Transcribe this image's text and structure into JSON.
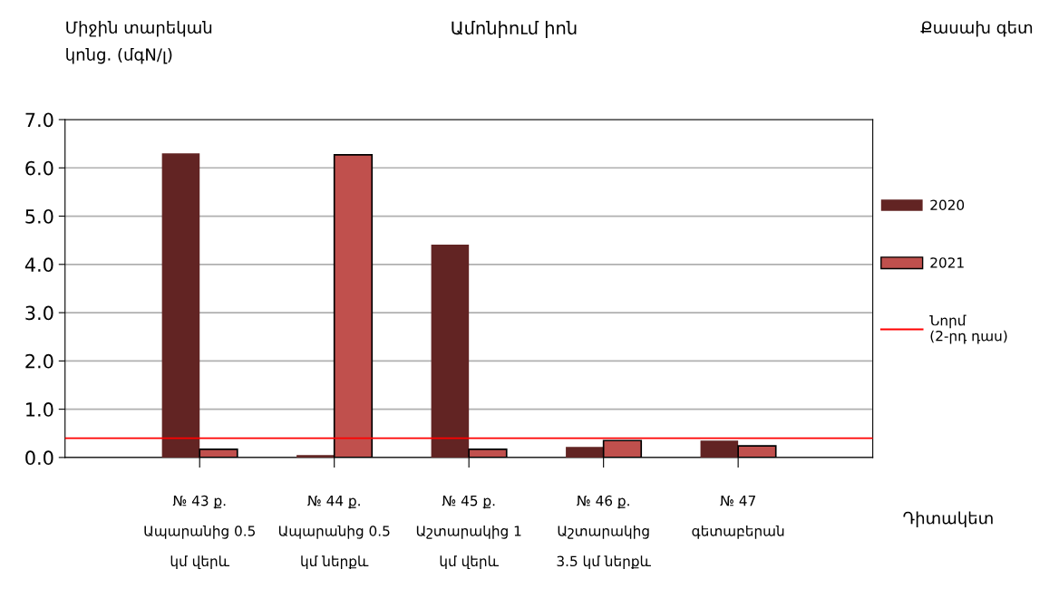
{
  "chart_data": {
    "type": "bar",
    "title": "Ամոնիում իոն",
    "ylabel": "Միջին տարեկան\nկոնց. (մգN/լ)",
    "xlabel": "Դիտակետ",
    "annotations": [
      "Քասախ գետ"
    ],
    "categories": [
      "№ 43 ք.\nԱպարանից 0.5\nկմ վերև",
      "№ 44 ք.\nԱպարանից 0.5\nկմ ներքև",
      "№ 45 ք.\nԱշտարակից 1\nկմ վերև",
      "№ 46 ք.\nԱշտարակից\n3.5 կմ ներքև",
      "№ 47\nգետաբերան"
    ],
    "series": [
      {
        "name": "2020",
        "color": "#622423",
        "values": [
          6.3,
          0.05,
          4.41,
          0.22,
          0.35
        ]
      },
      {
        "name": "2021",
        "color": "#c0504d",
        "values": [
          0.17,
          6.27,
          0.17,
          0.35,
          0.24
        ]
      }
    ],
    "ylim": [
      0,
      7
    ],
    "yticks": [
      {
        "value": 0,
        "label": "0.0"
      },
      {
        "value": 1,
        "label": "1.0"
      },
      {
        "value": 2,
        "label": "2.0"
      },
      {
        "value": 3,
        "label": "3.0"
      },
      {
        "value": 4,
        "label": "4.0"
      },
      {
        "value": 5,
        "label": "5.0"
      },
      {
        "value": 6,
        "label": "6.0"
      },
      {
        "value": 7,
        "label": "7.0"
      }
    ],
    "ref_lines": [
      {
        "axis": "y",
        "value": 0.4,
        "label": "Նորմ\n(2-րդ դաս)",
        "color": "#ff0000"
      }
    ],
    "grid": "y",
    "legend": "right"
  }
}
